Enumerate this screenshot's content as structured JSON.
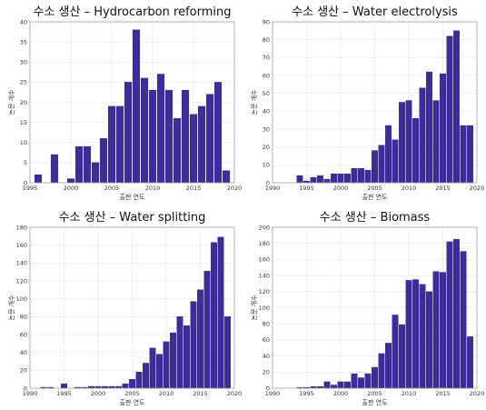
{
  "chart_data": [
    {
      "type": "bar",
      "title": "수소 생산 – Hydrocarbon reforming",
      "xlabel": "출판 연도",
      "ylabel": "논문 개수",
      "xlim": [
        1995,
        2020
      ],
      "ylim": [
        0,
        40
      ],
      "xticks": [
        1995,
        2000,
        2005,
        2010,
        2015,
        2020
      ],
      "yticks": [
        0,
        5,
        10,
        15,
        20,
        25,
        30,
        35,
        40
      ],
      "x": [
        1996,
        1998,
        2000,
        2001,
        2002,
        2003,
        2004,
        2005,
        2006,
        2007,
        2008,
        2009,
        2010,
        2011,
        2012,
        2013,
        2014,
        2015,
        2016,
        2017,
        2018,
        2019
      ],
      "values": [
        2,
        7,
        1,
        9,
        9,
        5,
        11,
        19,
        19,
        25,
        38,
        26,
        23,
        27,
        23,
        16,
        23,
        17,
        19,
        22,
        25,
        3
      ],
      "color": "#3d2c9b",
      "grid": true
    },
    {
      "type": "bar",
      "title": "수소 생산 – Water electrolysis",
      "xlabel": "출판 연도",
      "ylabel": "논문 개수",
      "xlim": [
        1990,
        2020
      ],
      "ylim": [
        0,
        90
      ],
      "xticks": [
        1990,
        1995,
        2000,
        2005,
        2010,
        2015,
        2020
      ],
      "yticks": [
        0,
        10,
        20,
        30,
        40,
        50,
        60,
        70,
        80,
        90
      ],
      "x": [
        1994,
        1995,
        1996,
        1997,
        1998,
        1999,
        2000,
        2001,
        2002,
        2003,
        2004,
        2005,
        2006,
        2007,
        2008,
        2009,
        2010,
        2011,
        2012,
        2013,
        2014,
        2015,
        2016,
        2017,
        2018,
        2019
      ],
      "values": [
        4,
        1,
        3,
        4,
        2,
        5,
        5,
        5,
        8,
        8,
        7,
        18,
        21,
        32,
        24,
        45,
        46,
        36,
        53,
        62,
        46,
        61,
        82,
        85,
        32,
        32
      ],
      "color": "#3d2c9b",
      "grid": true
    },
    {
      "type": "bar",
      "title": "수소 생산 – Water splitting",
      "xlabel": "출판 연도",
      "ylabel": "논문 개수",
      "xlim": [
        1990,
        2020
      ],
      "ylim": [
        0,
        180
      ],
      "xticks": [
        1990,
        1995,
        2000,
        2005,
        2010,
        2015,
        2020
      ],
      "yticks": [
        0,
        20,
        40,
        60,
        80,
        100,
        120,
        140,
        160,
        180
      ],
      "x": [
        1992,
        1993,
        1995,
        1997,
        1998,
        1999,
        2000,
        2001,
        2002,
        2003,
        2004,
        2005,
        2006,
        2007,
        2008,
        2009,
        2010,
        2011,
        2012,
        2013,
        2014,
        2015,
        2016,
        2017,
        2018,
        2019
      ],
      "values": [
        1,
        1,
        5,
        1,
        1,
        2,
        2,
        2,
        2,
        2,
        5,
        10,
        18,
        28,
        45,
        38,
        52,
        62,
        80,
        70,
        97,
        110,
        131,
        163,
        169,
        80
      ],
      "color": "#3d2c9b",
      "grid": true
    },
    {
      "type": "bar",
      "title": "수소 생산 – Biomass",
      "xlabel": "출판 연도",
      "ylabel": "논문 개수",
      "xlim": [
        1990,
        2020
      ],
      "ylim": [
        0,
        200
      ],
      "xticks": [
        1990,
        1995,
        2000,
        2005,
        2010,
        2015,
        2020
      ],
      "yticks": [
        0,
        20,
        40,
        60,
        80,
        100,
        120,
        140,
        160,
        180,
        200
      ],
      "x": [
        1994,
        1995,
        1996,
        1997,
        1998,
        1999,
        2000,
        2001,
        2002,
        2003,
        2004,
        2005,
        2006,
        2007,
        2008,
        2009,
        2010,
        2011,
        2012,
        2013,
        2014,
        2015,
        2016,
        2017,
        2018,
        2019
      ],
      "values": [
        1,
        1,
        2,
        2,
        8,
        4,
        8,
        8,
        18,
        13,
        18,
        26,
        43,
        56,
        91,
        79,
        134,
        135,
        129,
        120,
        145,
        144,
        182,
        185,
        170,
        64
      ],
      "color": "#3d2c9b",
      "grid": true
    }
  ]
}
